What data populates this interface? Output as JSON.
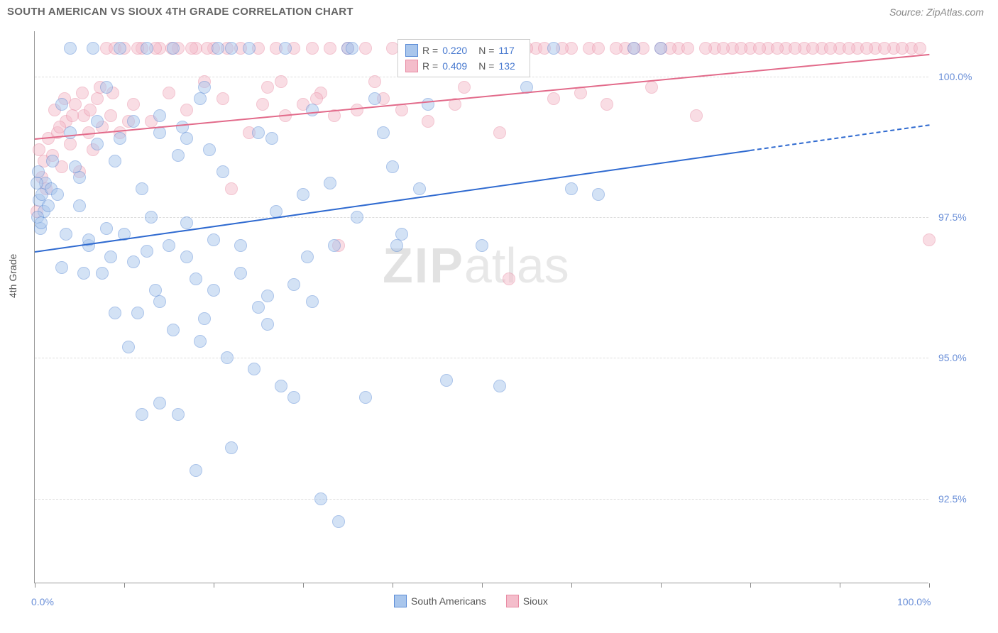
{
  "title": "SOUTH AMERICAN VS SIOUX 4TH GRADE CORRELATION CHART",
  "source_label": "Source: ZipAtlas.com",
  "ylabel": "4th Grade",
  "watermark": {
    "part1": "ZIP",
    "part2": "atlas"
  },
  "chart": {
    "type": "scatter",
    "background_color": "#ffffff",
    "grid_color": "#dddddd",
    "axis_color": "#999999",
    "tick_label_color": "#6a8fd8",
    "xlim": [
      0,
      100
    ],
    "ylim": [
      91.0,
      100.8
    ],
    "xticks": [
      0,
      10,
      20,
      30,
      40,
      50,
      60,
      70,
      80,
      90,
      100
    ],
    "xtick_labels": {
      "0": "0.0%",
      "100": "100.0%"
    },
    "yticks": [
      92.5,
      95.0,
      97.5,
      100.0
    ],
    "ytick_labels": [
      "92.5%",
      "95.0%",
      "97.5%",
      "100.0%"
    ],
    "marker_radius": 9,
    "marker_opacity": 0.5,
    "series": [
      {
        "key": "south_americans",
        "label": "South Americans",
        "color_fill": "#a9c6ec",
        "color_stroke": "#5a8bd6",
        "r_value": "0.220",
        "n_value": "117",
        "trend": {
          "x1": 0,
          "y1": 96.9,
          "x2": 80,
          "y2": 98.7,
          "x2_dash": 100,
          "y2_dash": 99.15,
          "color": "#2f6ad0",
          "width": 2
        },
        "points": [
          [
            0.5,
            97.8
          ],
          [
            0.8,
            97.9
          ],
          [
            1.0,
            97.6
          ],
          [
            1.2,
            98.1
          ],
          [
            1.5,
            97.7
          ],
          [
            1.8,
            98.0
          ],
          [
            0.3,
            97.5
          ],
          [
            0.6,
            97.3
          ],
          [
            2.0,
            98.5
          ],
          [
            3.0,
            99.5
          ],
          [
            4.0,
            99.0
          ],
          [
            5.0,
            98.2
          ],
          [
            6.0,
            97.0
          ],
          [
            7.0,
            98.8
          ],
          [
            8.0,
            97.3
          ],
          [
            9.0,
            98.5
          ],
          [
            10.0,
            97.2
          ],
          [
            11.0,
            96.7
          ],
          [
            12.0,
            98.0
          ],
          [
            13.0,
            97.5
          ],
          [
            14.0,
            99.3
          ],
          [
            15.0,
            97.0
          ],
          [
            16.0,
            98.6
          ],
          [
            17.0,
            97.4
          ],
          [
            18.0,
            96.4
          ],
          [
            19.0,
            99.8
          ],
          [
            20.0,
            97.1
          ],
          [
            21.0,
            98.3
          ],
          [
            22.0,
            100.5
          ],
          [
            23.0,
            97.0
          ],
          [
            24.0,
            100.5
          ],
          [
            25.0,
            99.0
          ],
          [
            26.0,
            96.1
          ],
          [
            27.0,
            97.6
          ],
          [
            28.0,
            100.5
          ],
          [
            29.0,
            94.3
          ],
          [
            30.0,
            97.9
          ],
          [
            31.0,
            99.4
          ],
          [
            32.0,
            92.5
          ],
          [
            33.0,
            98.1
          ],
          [
            34.0,
            92.1
          ],
          [
            35.0,
            100.5
          ],
          [
            36.0,
            97.5
          ],
          [
            37.0,
            94.3
          ],
          [
            38.0,
            99.6
          ],
          [
            39.0,
            99.0
          ],
          [
            40.0,
            98.4
          ],
          [
            41.0,
            97.2
          ],
          [
            42.0,
            100.5
          ],
          [
            44.0,
            99.5
          ],
          [
            46.0,
            94.6
          ],
          [
            48.0,
            100.5
          ],
          [
            50.0,
            97.0
          ],
          [
            52.0,
            94.5
          ],
          [
            55.0,
            99.8
          ],
          [
            58.0,
            100.5
          ],
          [
            60.0,
            98.0
          ],
          [
            63.0,
            97.9
          ],
          [
            6.0,
            97.1
          ],
          [
            7.5,
            96.5
          ],
          [
            9.0,
            95.8
          ],
          [
            10.5,
            95.2
          ],
          [
            12.5,
            96.9
          ],
          [
            14.0,
            96.0
          ],
          [
            15.5,
            95.5
          ],
          [
            17.0,
            96.8
          ],
          [
            18.5,
            95.3
          ],
          [
            20.0,
            96.2
          ],
          [
            21.5,
            95.0
          ],
          [
            23.0,
            96.5
          ],
          [
            24.5,
            94.8
          ],
          [
            26.0,
            95.6
          ],
          [
            27.5,
            94.5
          ],
          [
            29.0,
            96.3
          ],
          [
            4.0,
            100.5
          ],
          [
            6.5,
            100.5
          ],
          [
            8.0,
            99.8
          ],
          [
            9.5,
            100.5
          ],
          [
            11.0,
            99.2
          ],
          [
            12.5,
            100.5
          ],
          [
            14.0,
            99.0
          ],
          [
            15.5,
            100.5
          ],
          [
            17.0,
            98.9
          ],
          [
            18.5,
            99.6
          ],
          [
            20.5,
            100.5
          ],
          [
            14.0,
            94.2
          ],
          [
            16.0,
            94.0
          ],
          [
            13.5,
            96.2
          ],
          [
            5.5,
            96.5
          ],
          [
            8.5,
            96.8
          ],
          [
            2.5,
            97.9
          ],
          [
            3.5,
            97.2
          ],
          [
            4.5,
            98.4
          ],
          [
            0.2,
            98.1
          ],
          [
            0.4,
            98.3
          ],
          [
            0.7,
            97.4
          ],
          [
            11.5,
            95.8
          ],
          [
            19.0,
            95.7
          ],
          [
            25.0,
            95.9
          ],
          [
            31.0,
            96.0
          ],
          [
            12.0,
            94.0
          ],
          [
            3.0,
            96.6
          ],
          [
            5.0,
            97.7
          ],
          [
            7.0,
            99.2
          ],
          [
            9.5,
            98.9
          ],
          [
            16.5,
            99.1
          ],
          [
            19.5,
            98.7
          ],
          [
            26.5,
            98.9
          ],
          [
            30.5,
            96.8
          ],
          [
            33.5,
            97.0
          ],
          [
            35.5,
            100.5
          ],
          [
            67.0,
            100.5
          ],
          [
            70.0,
            100.5
          ],
          [
            18.0,
            93.0
          ],
          [
            22.0,
            93.4
          ],
          [
            40.5,
            97.0
          ],
          [
            43.0,
            98.0
          ]
        ]
      },
      {
        "key": "sioux",
        "label": "Sioux",
        "color_fill": "#f4bdcb",
        "color_stroke": "#e88ba3",
        "r_value": "0.409",
        "n_value": "132",
        "trend": {
          "x1": 0,
          "y1": 98.9,
          "x2": 100,
          "y2": 100.4,
          "color": "#e26a8a",
          "width": 2
        },
        "points": [
          [
            0.5,
            98.7
          ],
          [
            1.0,
            98.5
          ],
          [
            1.5,
            98.9
          ],
          [
            2.0,
            98.6
          ],
          [
            2.5,
            99.0
          ],
          [
            3.0,
            98.4
          ],
          [
            3.5,
            99.2
          ],
          [
            4.0,
            98.8
          ],
          [
            4.5,
            99.5
          ],
          [
            5.0,
            98.3
          ],
          [
            5.5,
            99.3
          ],
          [
            6.0,
            99.0
          ],
          [
            6.5,
            98.7
          ],
          [
            7.0,
            99.6
          ],
          [
            7.5,
            99.1
          ],
          [
            8.0,
            100.5
          ],
          [
            8.5,
            99.3
          ],
          [
            9.0,
            100.5
          ],
          [
            9.5,
            99.0
          ],
          [
            10.0,
            100.5
          ],
          [
            11.0,
            99.5
          ],
          [
            12.0,
            100.5
          ],
          [
            13.0,
            99.2
          ],
          [
            14.0,
            100.5
          ],
          [
            15.0,
            99.7
          ],
          [
            16.0,
            100.5
          ],
          [
            17.0,
            99.4
          ],
          [
            18.0,
            100.5
          ],
          [
            19.0,
            99.9
          ],
          [
            20.0,
            100.5
          ],
          [
            21.0,
            99.6
          ],
          [
            22.0,
            98.0
          ],
          [
            23.0,
            100.5
          ],
          [
            24.0,
            99.0
          ],
          [
            25.0,
            100.5
          ],
          [
            26.0,
            99.8
          ],
          [
            27.0,
            100.5
          ],
          [
            28.0,
            99.3
          ],
          [
            29.0,
            100.5
          ],
          [
            30.0,
            99.5
          ],
          [
            31.0,
            100.5
          ],
          [
            32.0,
            99.7
          ],
          [
            33.0,
            100.5
          ],
          [
            34.0,
            97.0
          ],
          [
            35.0,
            100.5
          ],
          [
            36.0,
            99.4
          ],
          [
            37.0,
            100.5
          ],
          [
            38.0,
            99.9
          ],
          [
            40.0,
            100.5
          ],
          [
            42.0,
            100.5
          ],
          [
            44.0,
            99.2
          ],
          [
            46.0,
            100.5
          ],
          [
            48.0,
            99.8
          ],
          [
            50.0,
            100.5
          ],
          [
            52.0,
            99.0
          ],
          [
            53.0,
            96.4
          ],
          [
            54.0,
            100.5
          ],
          [
            56.0,
            100.5
          ],
          [
            58.0,
            99.6
          ],
          [
            60.0,
            100.5
          ],
          [
            62.0,
            100.5
          ],
          [
            64.0,
            99.5
          ],
          [
            66.0,
            100.5
          ],
          [
            68.0,
            100.5
          ],
          [
            70.0,
            100.5
          ],
          [
            72.0,
            100.5
          ],
          [
            74.0,
            99.3
          ],
          [
            76.0,
            100.5
          ],
          [
            78.0,
            100.5
          ],
          [
            80.0,
            100.5
          ],
          [
            82.0,
            100.5
          ],
          [
            84.0,
            100.5
          ],
          [
            86.0,
            100.5
          ],
          [
            88.0,
            100.5
          ],
          [
            90.0,
            100.5
          ],
          [
            92.0,
            100.5
          ],
          [
            94.0,
            100.5
          ],
          [
            96.0,
            100.5
          ],
          [
            98.0,
            100.5
          ],
          [
            100.0,
            97.1
          ],
          [
            0.2,
            97.6
          ],
          [
            0.8,
            98.2
          ],
          [
            1.3,
            98.0
          ],
          [
            2.2,
            99.4
          ],
          [
            2.8,
            99.1
          ],
          [
            3.3,
            99.6
          ],
          [
            4.2,
            99.3
          ],
          [
            5.3,
            99.7
          ],
          [
            6.2,
            99.4
          ],
          [
            7.3,
            99.8
          ],
          [
            8.7,
            99.7
          ],
          [
            10.5,
            99.2
          ],
          [
            11.5,
            100.5
          ],
          [
            13.5,
            100.5
          ],
          [
            15.3,
            100.5
          ],
          [
            17.5,
            100.5
          ],
          [
            19.3,
            100.5
          ],
          [
            21.5,
            100.5
          ],
          [
            25.5,
            99.5
          ],
          [
            27.5,
            99.9
          ],
          [
            31.5,
            99.6
          ],
          [
            33.5,
            99.3
          ],
          [
            39.0,
            99.6
          ],
          [
            41.0,
            99.4
          ],
          [
            43.0,
            100.5
          ],
          [
            45.0,
            100.5
          ],
          [
            47.0,
            99.5
          ],
          [
            49.0,
            100.5
          ],
          [
            51.0,
            100.5
          ],
          [
            55.0,
            100.5
          ],
          [
            57.0,
            100.5
          ],
          [
            59.0,
            100.5
          ],
          [
            61.0,
            99.7
          ],
          [
            63.0,
            100.5
          ],
          [
            65.0,
            100.5
          ],
          [
            67.0,
            100.5
          ],
          [
            69.0,
            99.8
          ],
          [
            71.0,
            100.5
          ],
          [
            73.0,
            100.5
          ],
          [
            75.0,
            100.5
          ],
          [
            77.0,
            100.5
          ],
          [
            79.0,
            100.5
          ],
          [
            81.0,
            100.5
          ],
          [
            83.0,
            100.5
          ],
          [
            85.0,
            100.5
          ],
          [
            87.0,
            100.5
          ],
          [
            89.0,
            100.5
          ],
          [
            91.0,
            100.5
          ],
          [
            93.0,
            100.5
          ],
          [
            95.0,
            100.5
          ],
          [
            97.0,
            100.5
          ],
          [
            99.0,
            100.5
          ]
        ]
      }
    ]
  },
  "legend": {
    "r_label": "R =",
    "n_label": "N ="
  }
}
